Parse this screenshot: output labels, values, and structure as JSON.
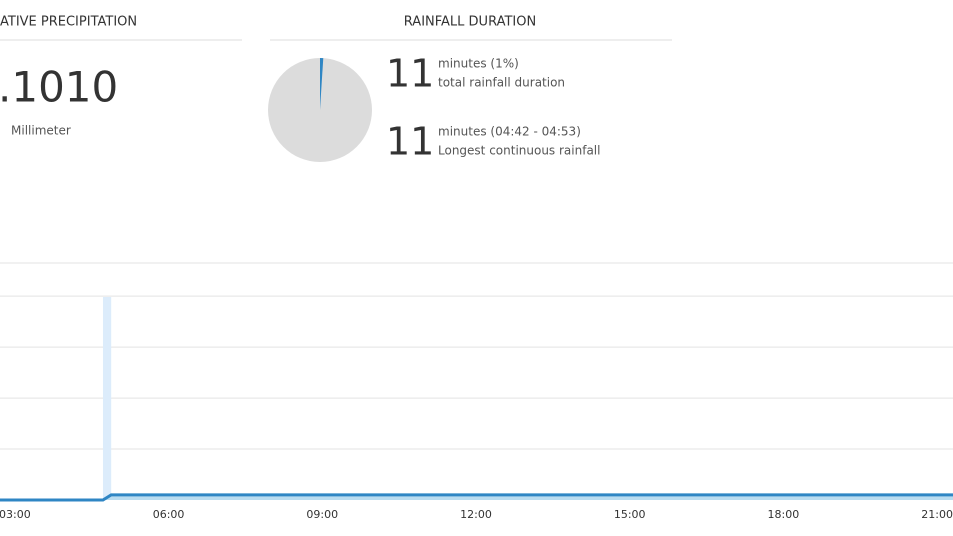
{
  "panels": [
    {
      "title": "ATIVE PRECIPITATION",
      "value": ".1010",
      "unit": "Millimeter"
    },
    {
      "title": "RAINFALL DURATION",
      "share": 1,
      "stats": [
        {
          "value": "11",
          "detail": "minutes (1%)",
          "label": "total rainfall duration"
        },
        {
          "value": "11",
          "detail": "minutes (04:42 - 04:53)",
          "label": "Longest continuous rainfall"
        }
      ]
    }
  ],
  "chart_data": {
    "type": "area",
    "x": [
      2.71,
      4.72,
      4.88,
      21.31
    ],
    "values": [
      0,
      0,
      0.101,
      0.101
    ],
    "color": "#2f86c4",
    "xlim": [
      2.71,
      21.31
    ],
    "ylim": [
      0,
      4.65
    ],
    "yticks": [
      1,
      2,
      3,
      4
    ],
    "xticks": [
      {
        "value": 3,
        "label": "03:00"
      },
      {
        "value": 6,
        "label": "06:00"
      },
      {
        "value": 9,
        "label": "09:00"
      },
      {
        "value": 12,
        "label": "12:00"
      },
      {
        "value": 15,
        "label": "15:00"
      },
      {
        "value": 18,
        "label": "18:00"
      },
      {
        "value": 21,
        "label": "21:00"
      }
    ],
    "highlight": [
      [
        4.72,
        4.88
      ]
    ]
  }
}
